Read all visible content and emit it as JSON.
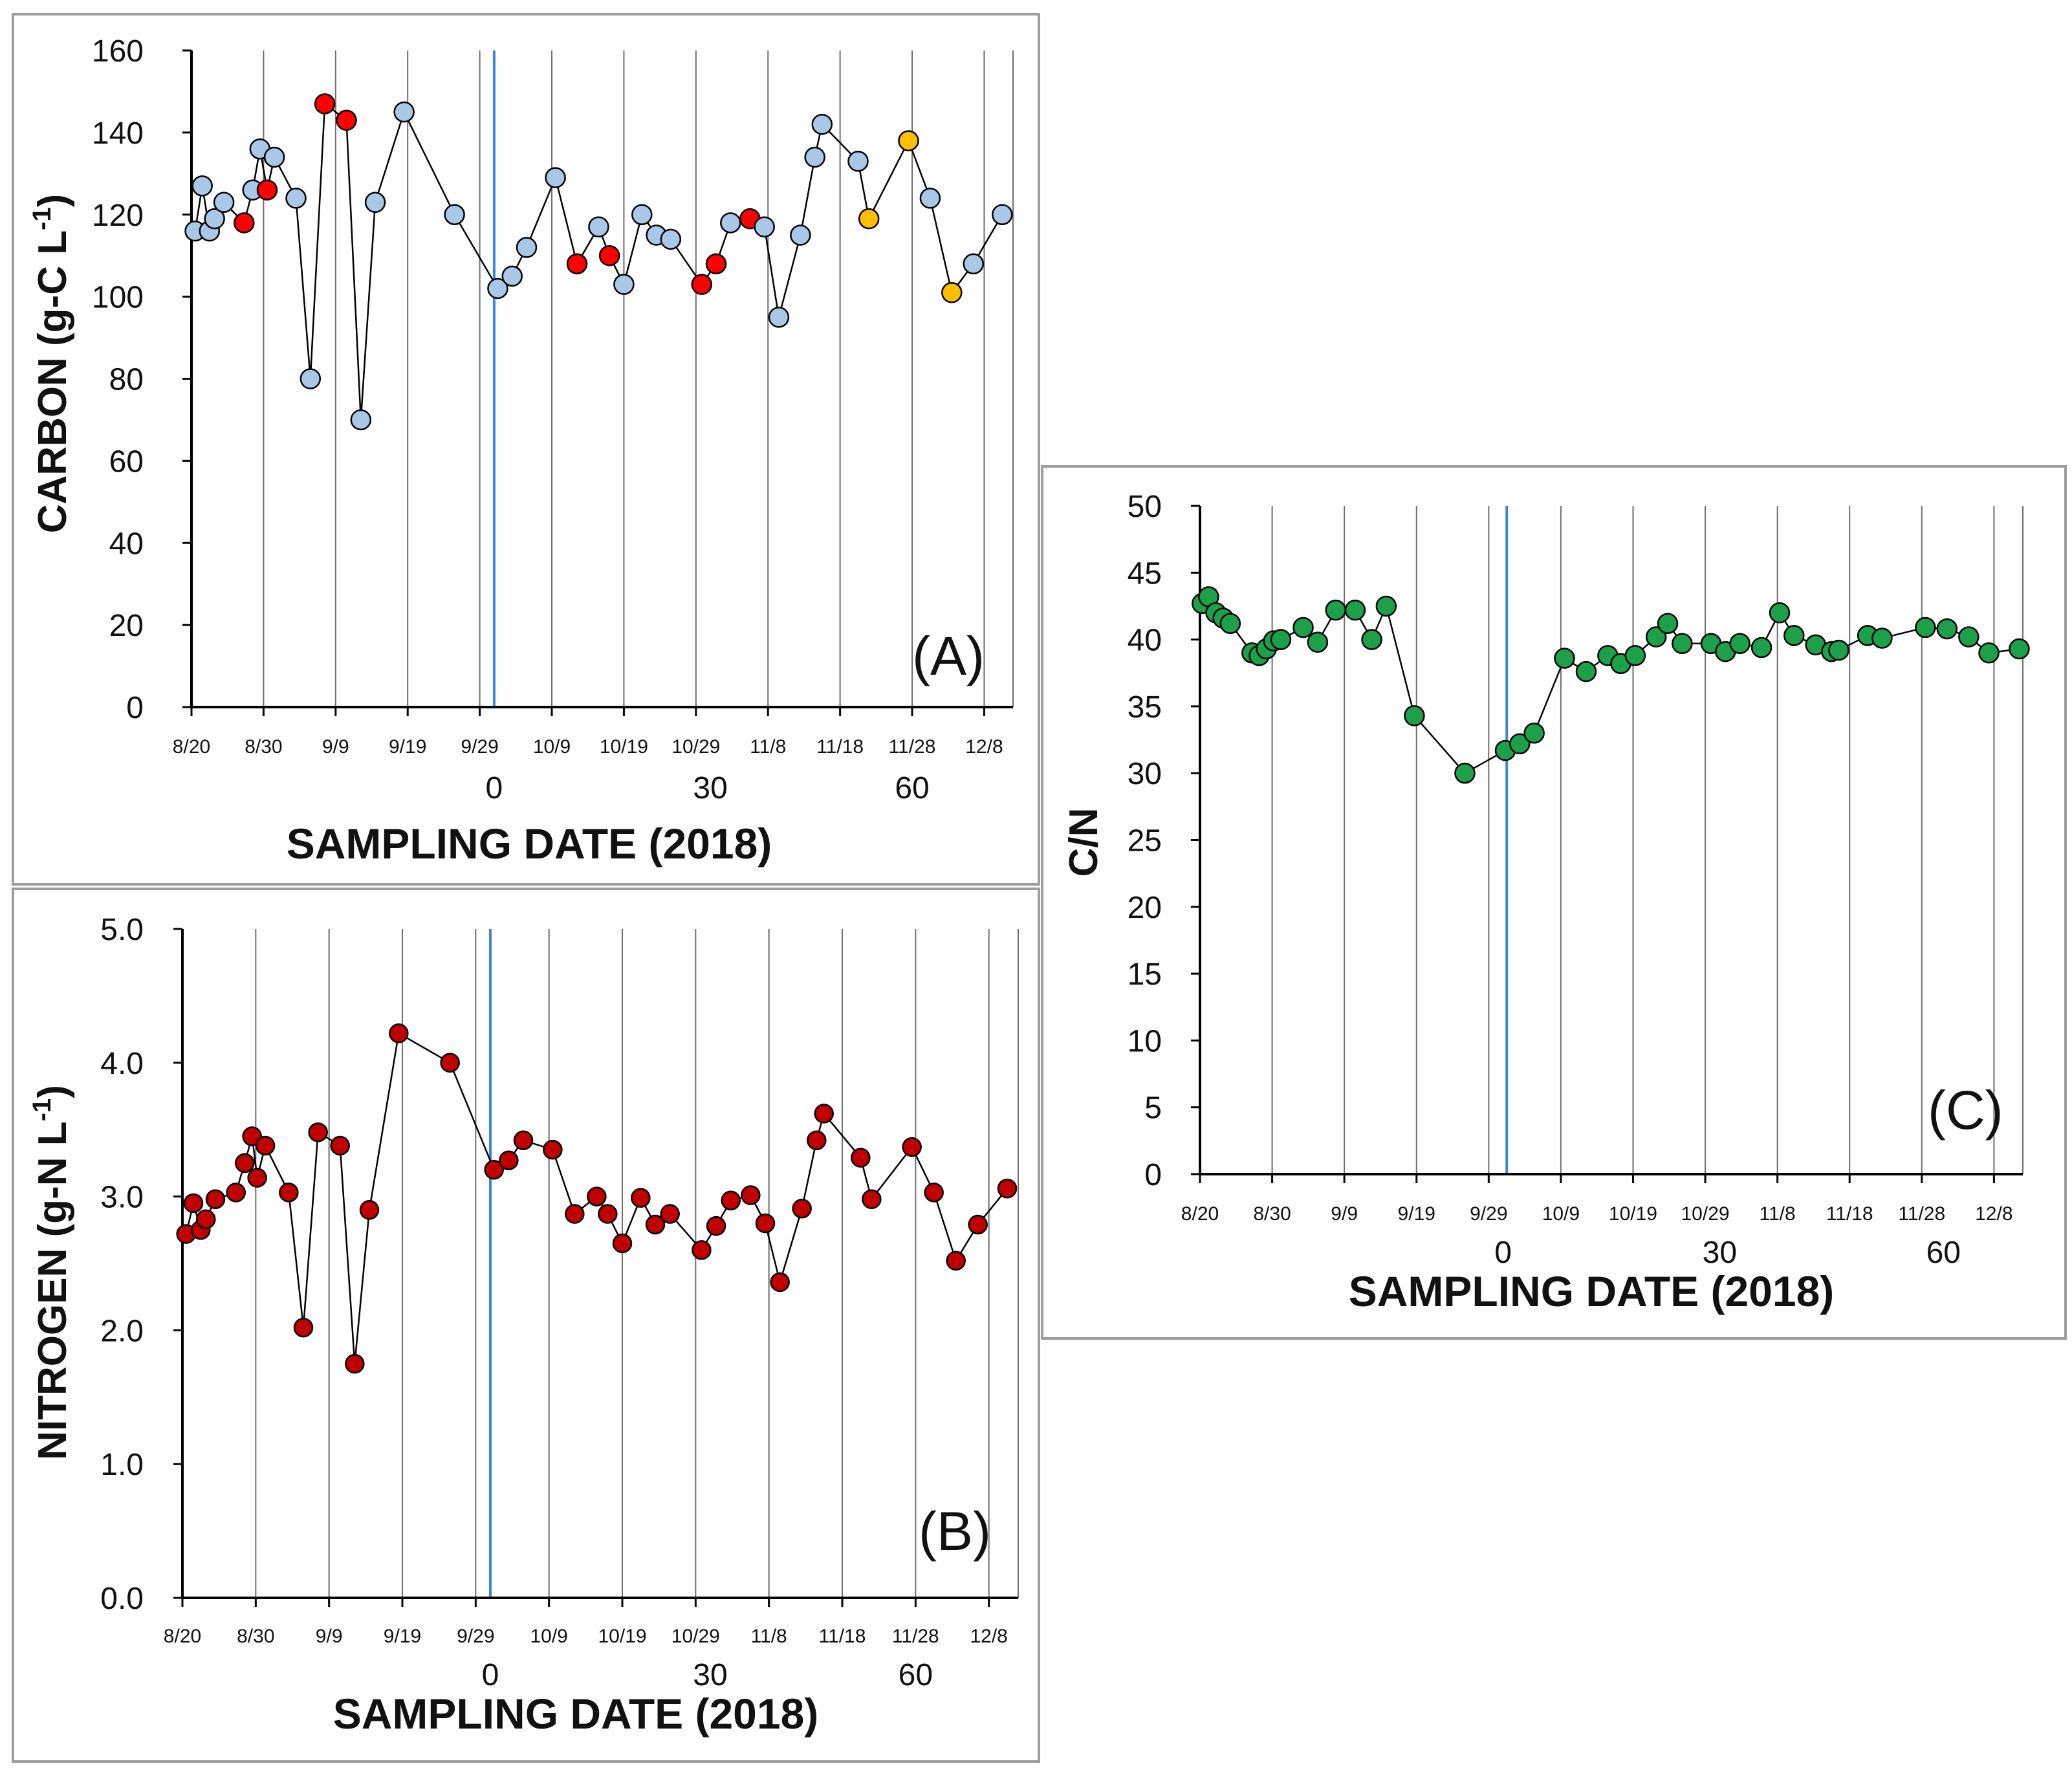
{
  "chart_data": [
    {
      "id": "A",
      "type": "scatter",
      "panel_label": "(A)",
      "xlabel": "SAMPLING DATE (2018)",
      "ylabel": "CARBON (g-C L⁻¹)",
      "ylabel_main": "CARBON (g-C L",
      "ylabel_exp": "-1",
      "ylabel_close": ")",
      "xlim": [
        0,
        114
      ],
      "ylim": [
        0,
        160
      ],
      "y_ticks": [
        0,
        20,
        40,
        60,
        80,
        100,
        120,
        140,
        160
      ],
      "y_tick_labels": [
        "0",
        "20",
        "40",
        "60",
        "80",
        "100",
        "120",
        "140",
        "160"
      ],
      "date_ticks": [
        0,
        10,
        20,
        30,
        40,
        50,
        60,
        70,
        80,
        90,
        100,
        110
      ],
      "date_tick_labels": [
        "8/20",
        "8/30",
        "9/9",
        "9/19",
        "9/29",
        "10/9",
        "10/19",
        "10/29",
        "11/8",
        "11/18",
        "11/28",
        "12/8"
      ],
      "day_ticks": [
        42,
        72,
        100
      ],
      "day_tick_labels": [
        "0",
        "30",
        "60"
      ],
      "vline_x": 42,
      "grid": "vertical",
      "line_color": "#000000",
      "vline_color": "#3a86d8",
      "points": [
        {
          "x": 0.5,
          "y": 116,
          "c": "#a9c8e8"
        },
        {
          "x": 1.5,
          "y": 127,
          "c": "#a9c8e8"
        },
        {
          "x": 2.5,
          "y": 116,
          "c": "#a9c8e8"
        },
        {
          "x": 3.2,
          "y": 119,
          "c": "#a9c8e8"
        },
        {
          "x": 4.5,
          "y": 123,
          "c": "#a9c8e8"
        },
        {
          "x": 7.3,
          "y": 118,
          "c": "#ff0000"
        },
        {
          "x": 8.5,
          "y": 126,
          "c": "#a9c8e8"
        },
        {
          "x": 9.5,
          "y": 136,
          "c": "#a9c8e8"
        },
        {
          "x": 10.5,
          "y": 126,
          "c": "#ff0000"
        },
        {
          "x": 11.5,
          "y": 134,
          "c": "#a9c8e8"
        },
        {
          "x": 14.5,
          "y": 124,
          "c": "#a9c8e8"
        },
        {
          "x": 16.5,
          "y": 80,
          "c": "#a9c8e8"
        },
        {
          "x": 18.5,
          "y": 147,
          "c": "#ff0000"
        },
        {
          "x": 21.5,
          "y": 143,
          "c": "#ff0000"
        },
        {
          "x": 23.5,
          "y": 70,
          "c": "#a9c8e8"
        },
        {
          "x": 25.5,
          "y": 123,
          "c": "#a9c8e8"
        },
        {
          "x": 29.5,
          "y": 145,
          "c": "#a9c8e8"
        },
        {
          "x": 36.5,
          "y": 120,
          "c": "#a9c8e8"
        },
        {
          "x": 42.5,
          "y": 102,
          "c": "#a9c8e8"
        },
        {
          "x": 44.5,
          "y": 105,
          "c": "#a9c8e8"
        },
        {
          "x": 46.5,
          "y": 112,
          "c": "#a9c8e8"
        },
        {
          "x": 50.5,
          "y": 129,
          "c": "#a9c8e8"
        },
        {
          "x": 53.5,
          "y": 108,
          "c": "#ff0000"
        },
        {
          "x": 56.5,
          "y": 117,
          "c": "#a9c8e8"
        },
        {
          "x": 58,
          "y": 110,
          "c": "#ff0000"
        },
        {
          "x": 60,
          "y": 103,
          "c": "#a9c8e8"
        },
        {
          "x": 62.5,
          "y": 120,
          "c": "#a9c8e8"
        },
        {
          "x": 64.5,
          "y": 115,
          "c": "#a9c8e8"
        },
        {
          "x": 66.5,
          "y": 114,
          "c": "#a9c8e8"
        },
        {
          "x": 70.8,
          "y": 103,
          "c": "#ff0000"
        },
        {
          "x": 72.8,
          "y": 108,
          "c": "#ff0000"
        },
        {
          "x": 74.8,
          "y": 118,
          "c": "#a9c8e8"
        },
        {
          "x": 77.5,
          "y": 119,
          "c": "#ff0000"
        },
        {
          "x": 79.5,
          "y": 117,
          "c": "#a9c8e8"
        },
        {
          "x": 81.5,
          "y": 95,
          "c": "#a9c8e8"
        },
        {
          "x": 84.5,
          "y": 115,
          "c": "#a9c8e8"
        },
        {
          "x": 86.5,
          "y": 134,
          "c": "#a9c8e8"
        },
        {
          "x": 87.5,
          "y": 142,
          "c": "#a9c8e8"
        },
        {
          "x": 92.5,
          "y": 133,
          "c": "#a9c8e8"
        },
        {
          "x": 94,
          "y": 119,
          "c": "#ffbf00"
        },
        {
          "x": 99.5,
          "y": 138,
          "c": "#ffbf00"
        },
        {
          "x": 102.5,
          "y": 124,
          "c": "#a9c8e8"
        },
        {
          "x": 105.5,
          "y": 101,
          "c": "#ffbf00"
        },
        {
          "x": 108.5,
          "y": 108,
          "c": "#a9c8e8"
        },
        {
          "x": 112.5,
          "y": 120,
          "c": "#a9c8e8"
        }
      ]
    },
    {
      "id": "B",
      "type": "scatter",
      "panel_label": "(B)",
      "xlabel": "SAMPLING DATE (2018)",
      "ylabel": "NITROGEN (g-N L⁻¹)",
      "ylabel_main": "NITROGEN (g-N L",
      "ylabel_exp": "-1",
      "ylabel_close": ")",
      "xlim": [
        0,
        114
      ],
      "ylim": [
        0,
        5
      ],
      "y_ticks": [
        0,
        1,
        2,
        3,
        4,
        5
      ],
      "y_tick_labels": [
        "0.0",
        "1.0",
        "2.0",
        "3.0",
        "4.0",
        "5.0"
      ],
      "date_ticks": [
        0,
        10,
        20,
        30,
        40,
        50,
        60,
        70,
        80,
        90,
        100,
        110
      ],
      "date_tick_labels": [
        "8/20",
        "8/30",
        "9/9",
        "9/19",
        "9/29",
        "10/9",
        "10/19",
        "10/29",
        "11/8",
        "11/18",
        "11/28",
        "12/8"
      ],
      "day_ticks": [
        42,
        72,
        100
      ],
      "day_tick_labels": [
        "0",
        "30",
        "60"
      ],
      "vline_x": 42,
      "grid": "vertical",
      "line_color": "#000000",
      "vline_color": "#3a86d8",
      "points": [
        {
          "x": 0.5,
          "y": 2.72,
          "c": "#c00000"
        },
        {
          "x": 1.5,
          "y": 2.95,
          "c": "#c00000"
        },
        {
          "x": 2.5,
          "y": 2.75,
          "c": "#c00000"
        },
        {
          "x": 3.2,
          "y": 2.83,
          "c": "#c00000"
        },
        {
          "x": 4.5,
          "y": 2.98,
          "c": "#c00000"
        },
        {
          "x": 7.3,
          "y": 3.03,
          "c": "#c00000"
        },
        {
          "x": 8.5,
          "y": 3.25,
          "c": "#c00000"
        },
        {
          "x": 9.5,
          "y": 3.45,
          "c": "#c00000"
        },
        {
          "x": 10.2,
          "y": 3.14,
          "c": "#c00000"
        },
        {
          "x": 11.3,
          "y": 3.38,
          "c": "#c00000"
        },
        {
          "x": 14.5,
          "y": 3.03,
          "c": "#c00000"
        },
        {
          "x": 16.5,
          "y": 2.02,
          "c": "#c00000"
        },
        {
          "x": 18.5,
          "y": 3.48,
          "c": "#c00000"
        },
        {
          "x": 21.5,
          "y": 3.38,
          "c": "#c00000"
        },
        {
          "x": 23.5,
          "y": 1.75,
          "c": "#c00000"
        },
        {
          "x": 25.5,
          "y": 2.9,
          "c": "#c00000"
        },
        {
          "x": 29.5,
          "y": 4.22,
          "c": "#c00000"
        },
        {
          "x": 36.5,
          "y": 4.0,
          "c": "#c00000"
        },
        {
          "x": 42.5,
          "y": 3.2,
          "c": "#c00000"
        },
        {
          "x": 44.5,
          "y": 3.27,
          "c": "#c00000"
        },
        {
          "x": 46.5,
          "y": 3.42,
          "c": "#c00000"
        },
        {
          "x": 50.5,
          "y": 3.35,
          "c": "#c00000"
        },
        {
          "x": 53.5,
          "y": 2.87,
          "c": "#c00000"
        },
        {
          "x": 56.5,
          "y": 3.0,
          "c": "#c00000"
        },
        {
          "x": 58,
          "y": 2.87,
          "c": "#c00000"
        },
        {
          "x": 60,
          "y": 2.65,
          "c": "#c00000"
        },
        {
          "x": 62.5,
          "y": 2.99,
          "c": "#c00000"
        },
        {
          "x": 64.5,
          "y": 2.79,
          "c": "#c00000"
        },
        {
          "x": 66.5,
          "y": 2.87,
          "c": "#c00000"
        },
        {
          "x": 70.8,
          "y": 2.6,
          "c": "#c00000"
        },
        {
          "x": 72.8,
          "y": 2.78,
          "c": "#c00000"
        },
        {
          "x": 74.8,
          "y": 2.97,
          "c": "#c00000"
        },
        {
          "x": 77.5,
          "y": 3.01,
          "c": "#c00000"
        },
        {
          "x": 79.5,
          "y": 2.8,
          "c": "#c00000"
        },
        {
          "x": 81.5,
          "y": 2.36,
          "c": "#c00000"
        },
        {
          "x": 84.5,
          "y": 2.91,
          "c": "#c00000"
        },
        {
          "x": 86.5,
          "y": 3.42,
          "c": "#c00000"
        },
        {
          "x": 87.5,
          "y": 3.62,
          "c": "#c00000"
        },
        {
          "x": 92.5,
          "y": 3.29,
          "c": "#c00000"
        },
        {
          "x": 94,
          "y": 2.98,
          "c": "#c00000"
        },
        {
          "x": 99.5,
          "y": 3.37,
          "c": "#c00000"
        },
        {
          "x": 102.5,
          "y": 3.03,
          "c": "#c00000"
        },
        {
          "x": 105.5,
          "y": 2.52,
          "c": "#c00000"
        },
        {
          "x": 108.5,
          "y": 2.79,
          "c": "#c00000"
        },
        {
          "x": 112.5,
          "y": 3.06,
          "c": "#c00000"
        }
      ]
    },
    {
      "id": "C",
      "type": "scatter",
      "panel_label": "(C)",
      "xlabel": "SAMPLING DATE (2018)",
      "ylabel": "C/N",
      "xlim": [
        0,
        114
      ],
      "ylim": [
        0,
        50
      ],
      "y_ticks": [
        0,
        5,
        10,
        15,
        20,
        25,
        30,
        35,
        40,
        45,
        50
      ],
      "y_tick_labels": [
        "0",
        "5",
        "10",
        "15",
        "20",
        "25",
        "30",
        "35",
        "40",
        "45",
        "50"
      ],
      "date_ticks": [
        0,
        10,
        20,
        30,
        40,
        50,
        60,
        70,
        80,
        90,
        100,
        110
      ],
      "date_tick_labels": [
        "8/20",
        "8/30",
        "9/9",
        "9/19",
        "9/29",
        "10/9",
        "10/19",
        "10/29",
        "11/8",
        "11/18",
        "11/28",
        "12/8"
      ],
      "day_ticks": [
        42,
        72,
        103
      ],
      "day_tick_labels": [
        "0",
        "30",
        "60"
      ],
      "vline_x": 42.5,
      "grid": "vertical",
      "line_color": "#000000",
      "vline_color": "#3a86d8",
      "points": [
        {
          "x": 0.3,
          "y": 42.7,
          "c": "#1ca04a"
        },
        {
          "x": 1.2,
          "y": 43.2,
          "c": "#1ca04a"
        },
        {
          "x": 2.2,
          "y": 42.0,
          "c": "#1ca04a"
        },
        {
          "x": 3.2,
          "y": 41.6,
          "c": "#1ca04a"
        },
        {
          "x": 4.2,
          "y": 41.2,
          "c": "#1ca04a"
        },
        {
          "x": 7.2,
          "y": 39.0,
          "c": "#1ca04a"
        },
        {
          "x": 8.2,
          "y": 38.8,
          "c": "#1ca04a"
        },
        {
          "x": 9.2,
          "y": 39.3,
          "c": "#1ca04a"
        },
        {
          "x": 10.2,
          "y": 39.9,
          "c": "#1ca04a"
        },
        {
          "x": 11.2,
          "y": 40.0,
          "c": "#1ca04a"
        },
        {
          "x": 14.3,
          "y": 40.9,
          "c": "#1ca04a"
        },
        {
          "x": 16.3,
          "y": 39.8,
          "c": "#1ca04a"
        },
        {
          "x": 18.8,
          "y": 42.2,
          "c": "#1ca04a"
        },
        {
          "x": 21.5,
          "y": 42.2,
          "c": "#1ca04a"
        },
        {
          "x": 23.8,
          "y": 40.0,
          "c": "#1ca04a"
        },
        {
          "x": 25.8,
          "y": 42.5,
          "c": "#1ca04a"
        },
        {
          "x": 29.7,
          "y": 34.3,
          "c": "#1ca04a"
        },
        {
          "x": 36.7,
          "y": 30.0,
          "c": "#1ca04a"
        },
        {
          "x": 42.3,
          "y": 31.7,
          "c": "#1ca04a"
        },
        {
          "x": 44.3,
          "y": 32.2,
          "c": "#1ca04a"
        },
        {
          "x": 46.3,
          "y": 33.0,
          "c": "#1ca04a"
        },
        {
          "x": 50.5,
          "y": 38.6,
          "c": "#1ca04a"
        },
        {
          "x": 53.5,
          "y": 37.6,
          "c": "#1ca04a"
        },
        {
          "x": 56.5,
          "y": 38.8,
          "c": "#1ca04a"
        },
        {
          "x": 58.3,
          "y": 38.2,
          "c": "#1ca04a"
        },
        {
          "x": 60.3,
          "y": 38.8,
          "c": "#1ca04a"
        },
        {
          "x": 63.2,
          "y": 40.2,
          "c": "#1ca04a"
        },
        {
          "x": 64.8,
          "y": 41.2,
          "c": "#1ca04a"
        },
        {
          "x": 66.8,
          "y": 39.7,
          "c": "#1ca04a"
        },
        {
          "x": 70.8,
          "y": 39.7,
          "c": "#1ca04a"
        },
        {
          "x": 72.8,
          "y": 39.1,
          "c": "#1ca04a"
        },
        {
          "x": 74.8,
          "y": 39.7,
          "c": "#1ca04a"
        },
        {
          "x": 77.8,
          "y": 39.4,
          "c": "#1ca04a"
        },
        {
          "x": 80.3,
          "y": 42.0,
          "c": "#1ca04a"
        },
        {
          "x": 82.3,
          "y": 40.3,
          "c": "#1ca04a"
        },
        {
          "x": 85.3,
          "y": 39.6,
          "c": "#1ca04a"
        },
        {
          "x": 87.5,
          "y": 39.1,
          "c": "#1ca04a"
        },
        {
          "x": 88.5,
          "y": 39.2,
          "c": "#1ca04a"
        },
        {
          "x": 92.5,
          "y": 40.3,
          "c": "#1ca04a"
        },
        {
          "x": 94.5,
          "y": 40.1,
          "c": "#1ca04a"
        },
        {
          "x": 100.5,
          "y": 40.9,
          "c": "#1ca04a"
        },
        {
          "x": 103.5,
          "y": 40.8,
          "c": "#1ca04a"
        },
        {
          "x": 106.5,
          "y": 40.2,
          "c": "#1ca04a"
        },
        {
          "x": 109.3,
          "y": 39.0,
          "c": "#1ca04a"
        },
        {
          "x": 113.5,
          "y": 39.3,
          "c": "#1ca04a"
        }
      ]
    }
  ]
}
